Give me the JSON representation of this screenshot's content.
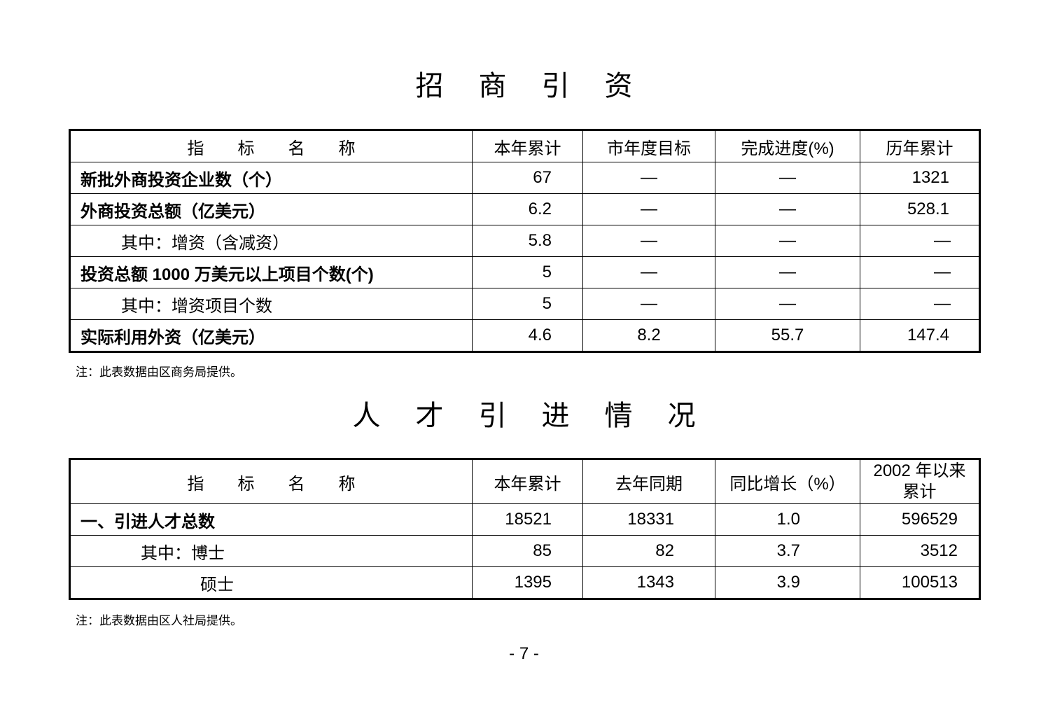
{
  "section1": {
    "title": [
      "招",
      "商",
      "引",
      "资"
    ],
    "headers": [
      "指　　标　　名　　称",
      "本年累计",
      "市年度目标",
      "完成进度(%)",
      "历年累计"
    ],
    "rows": [
      {
        "name": "新批外商投资企业数（个）",
        "style": "bold",
        "values": [
          "67",
          "—",
          "—",
          "1321"
        ]
      },
      {
        "name": "外商投资总额（亿美元）",
        "style": "bold",
        "values": [
          "6.2",
          "—",
          "—",
          "528.1"
        ]
      },
      {
        "name": "其中：增资（含减资）",
        "style": "indent",
        "values": [
          "5.8",
          "—",
          "—",
          "—"
        ]
      },
      {
        "name": "投资总额 1000 万美元以上项目个数(个)",
        "style": "bold",
        "values": [
          "5",
          "—",
          "—",
          "—"
        ]
      },
      {
        "name": "其中：增资项目个数",
        "style": "indent",
        "values": [
          "5",
          "—",
          "—",
          "—"
        ]
      },
      {
        "name": "实际利用外资（亿美元）",
        "style": "bold",
        "values": [
          "4.6",
          "8.2",
          "55.7",
          "147.4"
        ]
      }
    ],
    "note": "注：此表数据由区商务局提供。"
  },
  "section2": {
    "title": [
      "人",
      "才",
      "引",
      "进",
      "情",
      "况"
    ],
    "headers": [
      "指　　标　　名　　称",
      "本年累计",
      "去年同期",
      "同比增长（%）",
      "2002 年以来累计"
    ],
    "rows": [
      {
        "name": "一、引进人才总数",
        "style": "bold",
        "values": [
          "18521",
          "18331",
          "1.0",
          "596529"
        ]
      },
      {
        "name": "其中：博士",
        "style": "indent2",
        "values": [
          "85",
          "82",
          "3.7",
          "3512"
        ]
      },
      {
        "name": "硕士",
        "style": "indent3",
        "values": [
          "1395",
          "1343",
          "3.9",
          "100513"
        ]
      }
    ],
    "note": "注：此表数据由区人社局提供。"
  },
  "page_number": "- 7 -"
}
